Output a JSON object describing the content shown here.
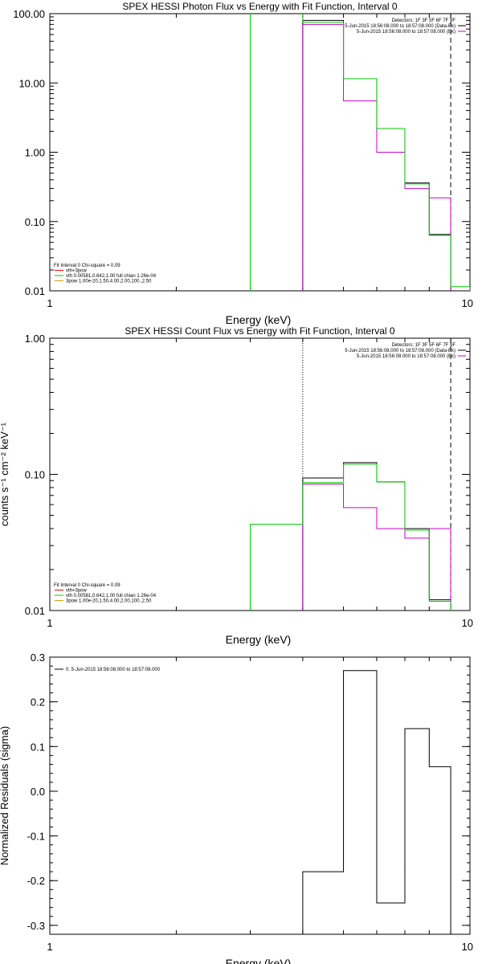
{
  "colors": {
    "black": "#000000",
    "green": "#00cc00",
    "magenta": "#cc00cc",
    "red": "#ff0000",
    "orange": "#e0a000"
  },
  "chart_data": [
    {
      "type": "line",
      "title": "SPEX HESSI Photon Flux vs Energy with Fit Function, Interval 0",
      "xlabel": "Energy (keV)",
      "ylabel": "",
      "xscale": "log",
      "yscale": "log",
      "xlim": [
        1,
        10
      ],
      "ylim": [
        0.01,
        100
      ],
      "xticks": [
        {
          "v": 1,
          "label": "1"
        },
        {
          "v": 10,
          "label": "10"
        }
      ],
      "yticks": [
        {
          "v": 0.01,
          "label": "0.01"
        },
        {
          "v": 0.1,
          "label": "0.10"
        },
        {
          "v": 1,
          "label": "1.00"
        },
        {
          "v": 10,
          "label": "10.00"
        },
        {
          "v": 100,
          "label": "100.00"
        }
      ],
      "info_lines": [
        "Detectors: 1F 3F 5F 6F 7F 9F",
        "5-Jun-2015 18:56:08.000 to 18:57:08.000 (Data-Bk)",
        "5-Jun-2015 18:56:08.000 to 18:57:08.000 (Bk)"
      ],
      "legend": [
        "Fit Interval 0   Chi-square = 0.09",
        "vth+3pow",
        "vth 0.00581,0.642,1.00  full chian 1.26e-04",
        "3pow 1.00e-20,1.50,4.00,2.00,100.,2.50"
      ],
      "vlines": [
        {
          "x": 4,
          "style": "dotted"
        },
        {
          "x": 9,
          "style": "dashed"
        }
      ],
      "series": [
        {
          "name": "5-Jun-2015 18:56:08.000 to 18:57:08.000 (Data-Bk)",
          "edges": [
            4,
            5,
            6,
            7,
            8,
            9
          ],
          "values": [
            80,
            11.5,
            2.2,
            0.36,
            0.065
          ],
          "color": "black"
        },
        {
          "name": "5-Jun-2015 18:56:08.000 to 18:57:08.000 (Bk)",
          "edges": [
            4,
            5,
            6,
            7,
            8,
            9
          ],
          "values": [
            70,
            5.5,
            1.0,
            0.3,
            0.22
          ],
          "color": "magenta"
        },
        {
          "name": "vth+3pow",
          "edges": [
            3,
            4,
            5,
            6,
            7,
            8,
            9,
            10
          ],
          "values": [
            200,
            75,
            11.5,
            2.2,
            0.35,
            0.063,
            0.0115
          ],
          "color": "green"
        }
      ]
    },
    {
      "type": "line",
      "title": "SPEX HESSI Count Flux vs Energy with Fit Function, Interval 0",
      "xlabel": "Energy (keV)",
      "ylabel": "counts s⁻¹ cm⁻² keV⁻¹",
      "xscale": "log",
      "yscale": "log",
      "xlim": [
        1,
        10
      ],
      "ylim": [
        0.01,
        1
      ],
      "xticks": [
        {
          "v": 1,
          "label": "1"
        },
        {
          "v": 10,
          "label": "10"
        }
      ],
      "yticks": [
        {
          "v": 0.01,
          "label": "0.01"
        },
        {
          "v": 0.1,
          "label": "0.10"
        },
        {
          "v": 1,
          "label": "1.00"
        }
      ],
      "info_lines": [
        "Detectors: 1F 3F 5F 6F 7F 9F",
        "5-Jun-2015 18:56:08.000 to 18:57:08.000 (Data-Bk)",
        "5-Jun-2015 18:56:08.000 to 18:57:08.000 (Bk)"
      ],
      "legend": [
        "Fit Interval 0   Chi-square = 0.09",
        "vth+3pow",
        "vth 0.00581,0.642,1.00  full chian 1.26e-04",
        "3pow 1.00e-20,1.50,4.00,2.00,100.,2.50"
      ],
      "vlines": [
        {
          "x": 4,
          "style": "dotted"
        },
        {
          "x": 9,
          "style": "dashed"
        }
      ],
      "series": [
        {
          "name": "5-Jun-2015 18:56:08.000 to 18:57:08.000 (Data-Bk)",
          "edges": [
            4,
            5,
            6,
            7,
            8,
            9
          ],
          "values": [
            0.094,
            0.122,
            0.088,
            0.04,
            0.012
          ],
          "color": "black"
        },
        {
          "name": "5-Jun-2015 18:56:08.000 to 18:57:08.000 (Bk)",
          "edges": [
            4,
            5,
            6,
            7,
            8,
            9
          ],
          "values": [
            0.085,
            0.057,
            0.04,
            0.034,
            0.04
          ],
          "color": "magenta"
        },
        {
          "name": "vth+3pow",
          "edges": [
            3,
            4,
            5,
            6,
            7,
            8,
            9
          ],
          "values": [
            0.043,
            0.087,
            0.119,
            0.088,
            0.039,
            0.0117
          ],
          "color": "green"
        }
      ]
    },
    {
      "type": "line",
      "title": "",
      "xlabel": "Energy (keV)",
      "ylabel": "Normalized Residuals (sigma)",
      "xscale": "log",
      "yscale": "linear",
      "xlim": [
        1,
        10
      ],
      "ylim": [
        -0.32,
        0.3
      ],
      "xticks": [
        {
          "v": 1,
          "label": "1"
        },
        {
          "v": 10,
          "label": "10"
        }
      ],
      "yticks": [
        {
          "v": 0.3,
          "label": "0.3"
        },
        {
          "v": 0.2,
          "label": "0.2"
        },
        {
          "v": 0.1,
          "label": "0.1"
        },
        {
          "v": 0.0,
          "label": "0.0"
        },
        {
          "v": -0.1,
          "label": "-0.1"
        },
        {
          "v": -0.2,
          "label": "-0.2"
        },
        {
          "v": -0.3,
          "label": "-0.3"
        }
      ],
      "legend": [
        "0. 5-Jun-2015 18:56:08.000 to 18:57:08.000"
      ],
      "series": [
        {
          "name": "0. 5-Jun-2015 18:56:08.000 to 18:57:08.000",
          "edges": [
            4,
            5,
            6,
            7,
            8,
            9
          ],
          "values": [
            -0.18,
            0.27,
            -0.25,
            0.14,
            0.055
          ],
          "color": "black"
        }
      ]
    }
  ]
}
